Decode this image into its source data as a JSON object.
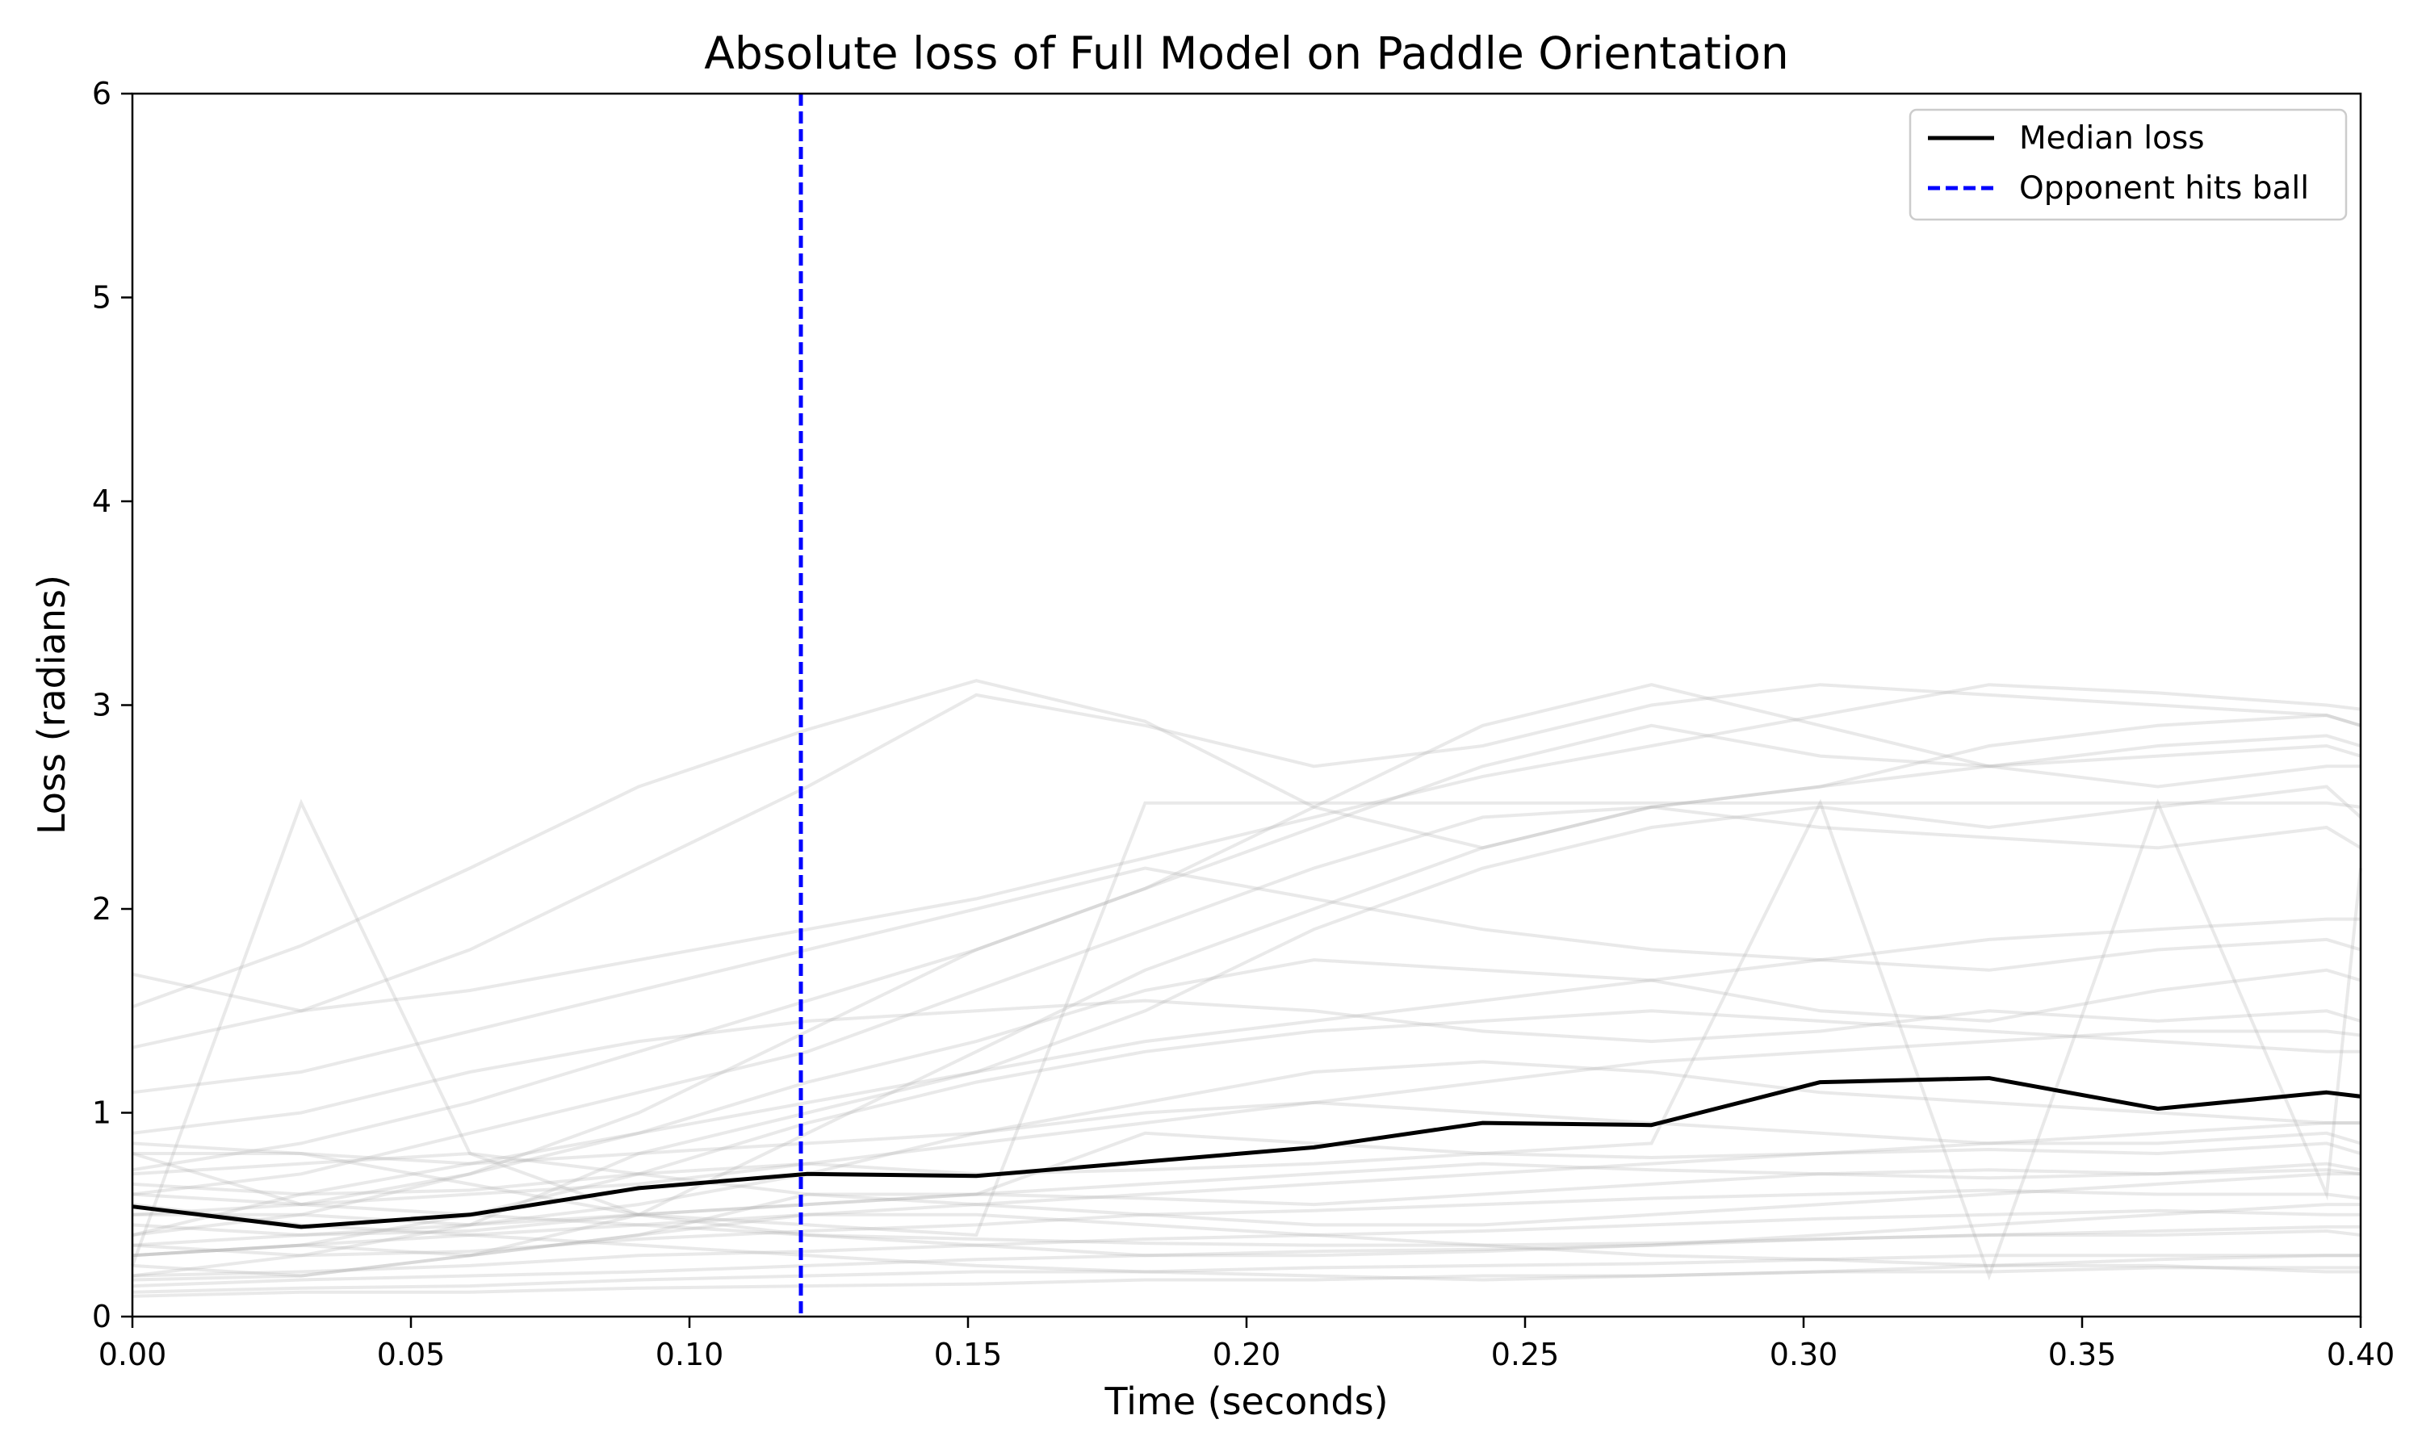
{
  "chart_data": {
    "type": "line",
    "title": "Absolute loss of Full Model on Paddle Orientation",
    "xlabel": "Time (seconds)",
    "ylabel": "Loss (radians)",
    "xlim": [
      0,
      0.4
    ],
    "ylim": [
      0,
      6
    ],
    "x_ticks": [
      "0.00",
      "0.05",
      "0.10",
      "0.15",
      "0.20",
      "0.25",
      "0.30",
      "0.35",
      "0.40"
    ],
    "y_ticks": [
      "0",
      "1",
      "2",
      "3",
      "4",
      "5",
      "6"
    ],
    "grid": false,
    "legend": {
      "position": "top-right",
      "entries": [
        {
          "label": "Median loss",
          "color": "#000000",
          "style": "solid"
        },
        {
          "label": "Opponent hits ball",
          "color": "#0000ff",
          "style": "dashed"
        }
      ]
    },
    "x": [
      0.0,
      0.0303,
      0.0606,
      0.0909,
      0.1212,
      0.1515,
      0.1818,
      0.2121,
      0.2424,
      0.2727,
      0.303,
      0.3333,
      0.3636,
      0.3939,
      0.4
    ],
    "series": [
      {
        "name": "Median loss",
        "color": "#000000",
        "values": [
          0.54,
          0.44,
          0.5,
          0.63,
          0.7,
          0.69,
          0.76,
          0.83,
          0.95,
          0.94,
          1.15,
          1.17,
          1.02,
          1.1,
          1.08
        ]
      }
    ],
    "vline": {
      "name": "Opponent hits ball",
      "x": 0.12,
      "color": "#0000ff"
    },
    "trial_lines": {
      "color": "#b0b0b0",
      "values": [
        [
          1.52,
          1.82,
          2.2,
          2.6,
          2.88,
          3.12,
          2.92,
          2.5,
          2.3,
          2.5,
          2.6,
          2.8,
          2.9,
          2.95,
          2.9
        ],
        [
          1.32,
          1.5,
          1.8,
          2.2,
          2.6,
          3.05,
          2.9,
          2.7,
          2.8,
          3.0,
          3.1,
          3.05,
          3.0,
          2.95,
          2.9
        ],
        [
          1.68,
          1.5,
          1.6,
          1.75,
          1.9,
          2.05,
          2.25,
          2.45,
          2.65,
          2.8,
          2.95,
          3.1,
          3.06,
          3.0,
          2.98
        ],
        [
          0.72,
          0.85,
          1.05,
          1.3,
          1.55,
          1.8,
          2.1,
          2.4,
          2.7,
          2.9,
          2.75,
          2.7,
          2.8,
          2.85,
          2.8
        ],
        [
          0.8,
          0.55,
          0.7,
          1.0,
          1.4,
          1.8,
          2.1,
          2.5,
          2.9,
          3.1,
          2.9,
          2.7,
          2.6,
          2.7,
          2.7
        ],
        [
          0.25,
          2.52,
          0.8,
          0.5,
          0.45,
          0.4,
          2.52,
          2.52,
          2.52,
          2.52,
          2.52,
          2.52,
          2.52,
          2.52,
          2.5
        ],
        [
          0.3,
          0.35,
          0.3,
          0.4,
          0.6,
          0.6,
          0.9,
          0.85,
          0.8,
          0.85,
          2.52,
          0.2,
          2.52,
          0.6,
          2.2
        ],
        [
          0.4,
          0.5,
          0.45,
          0.8,
          1.0,
          1.2,
          1.5,
          1.9,
          2.2,
          2.4,
          2.5,
          2.4,
          2.5,
          2.6,
          2.45
        ],
        [
          0.6,
          0.7,
          0.9,
          1.1,
          1.3,
          1.6,
          1.9,
          2.2,
          2.45,
          2.5,
          2.4,
          2.35,
          2.3,
          2.4,
          2.3
        ],
        [
          1.1,
          1.2,
          1.4,
          1.6,
          1.8,
          2.0,
          2.2,
          2.05,
          1.9,
          1.8,
          1.75,
          1.7,
          1.8,
          1.85,
          1.8
        ],
        [
          0.5,
          0.5,
          0.7,
          0.9,
          1.15,
          1.35,
          1.6,
          1.75,
          1.7,
          1.65,
          1.5,
          1.45,
          1.6,
          1.7,
          1.65
        ],
        [
          0.9,
          1.0,
          1.2,
          1.35,
          1.45,
          1.5,
          1.55,
          1.5,
          1.4,
          1.35,
          1.4,
          1.5,
          1.45,
          1.5,
          1.45
        ],
        [
          0.3,
          0.35,
          0.5,
          0.7,
          0.95,
          1.15,
          1.3,
          1.4,
          1.45,
          1.5,
          1.45,
          1.4,
          1.35,
          1.3,
          1.3
        ],
        [
          0.2,
          0.3,
          0.45,
          0.55,
          0.7,
          0.9,
          1.05,
          1.2,
          1.25,
          1.2,
          1.1,
          1.05,
          1.0,
          0.95,
          0.95
        ],
        [
          0.8,
          0.8,
          0.75,
          0.8,
          0.85,
          0.9,
          1.0,
          1.05,
          1.0,
          0.95,
          0.9,
          0.85,
          0.85,
          0.9,
          0.85
        ],
        [
          0.65,
          0.6,
          0.62,
          0.7,
          0.75,
          0.7,
          0.72,
          0.75,
          0.8,
          0.78,
          0.8,
          0.82,
          0.8,
          0.85,
          0.8
        ],
        [
          0.45,
          0.4,
          0.42,
          0.5,
          0.55,
          0.6,
          0.58,
          0.55,
          0.6,
          0.65,
          0.7,
          0.72,
          0.7,
          0.75,
          0.72
        ],
        [
          0.35,
          0.3,
          0.32,
          0.38,
          0.42,
          0.45,
          0.5,
          0.52,
          0.55,
          0.58,
          0.6,
          0.62,
          0.6,
          0.6,
          0.58
        ],
        [
          0.2,
          0.22,
          0.25,
          0.3,
          0.32,
          0.35,
          0.38,
          0.4,
          0.42,
          0.45,
          0.48,
          0.5,
          0.52,
          0.5,
          0.5
        ],
        [
          0.15,
          0.18,
          0.2,
          0.22,
          0.25,
          0.28,
          0.3,
          0.32,
          0.33,
          0.35,
          0.38,
          0.4,
          0.4,
          0.42,
          0.4
        ],
        [
          0.12,
          0.14,
          0.15,
          0.18,
          0.2,
          0.22,
          0.22,
          0.24,
          0.25,
          0.26,
          0.28,
          0.3,
          0.3,
          0.3,
          0.3
        ],
        [
          0.1,
          0.12,
          0.12,
          0.14,
          0.15,
          0.16,
          0.18,
          0.18,
          0.2,
          0.2,
          0.22,
          0.22,
          0.24,
          0.24,
          0.24
        ],
        [
          0.55,
          0.45,
          0.4,
          0.45,
          0.5,
          0.5,
          0.45,
          0.4,
          0.35,
          0.3,
          0.28,
          0.25,
          0.25,
          0.22,
          0.22
        ],
        [
          0.7,
          0.75,
          0.8,
          0.7,
          0.6,
          0.55,
          0.5,
          0.45,
          0.45,
          0.5,
          0.55,
          0.6,
          0.65,
          0.7,
          0.7
        ],
        [
          0.4,
          0.6,
          0.75,
          0.9,
          1.05,
          1.2,
          1.35,
          1.45,
          1.55,
          1.65,
          1.75,
          1.85,
          1.9,
          1.95,
          1.95
        ],
        [
          0.25,
          0.2,
          0.3,
          0.4,
          0.5,
          0.55,
          0.6,
          0.65,
          0.7,
          0.75,
          0.8,
          0.85,
          0.9,
          0.95,
          0.95
        ],
        [
          0.3,
          0.35,
          0.4,
          0.35,
          0.3,
          0.25,
          0.22,
          0.2,
          0.18,
          0.2,
          0.22,
          0.25,
          0.28,
          0.3,
          0.3
        ],
        [
          0.85,
          0.8,
          0.65,
          0.5,
          0.4,
          0.35,
          0.3,
          0.3,
          0.32,
          0.35,
          0.4,
          0.45,
          0.5,
          0.55,
          0.55
        ],
        [
          0.5,
          0.55,
          0.6,
          0.65,
          0.75,
          0.85,
          0.95,
          1.05,
          1.15,
          1.25,
          1.3,
          1.35,
          1.4,
          1.4,
          1.38
        ],
        [
          0.18,
          0.2,
          0.3,
          0.5,
          0.9,
          1.3,
          1.7,
          2.0,
          2.3,
          2.5,
          2.6,
          2.7,
          2.75,
          2.8,
          2.75
        ],
        [
          0.35,
          0.4,
          0.45,
          0.5,
          0.55,
          0.6,
          0.65,
          0.7,
          0.75,
          0.72,
          0.7,
          0.68,
          0.7,
          0.72,
          0.7
        ],
        [
          0.6,
          0.55,
          0.5,
          0.45,
          0.4,
          0.38,
          0.36,
          0.35,
          0.35,
          0.36,
          0.38,
          0.4,
          0.42,
          0.44,
          0.44
        ]
      ]
    }
  }
}
